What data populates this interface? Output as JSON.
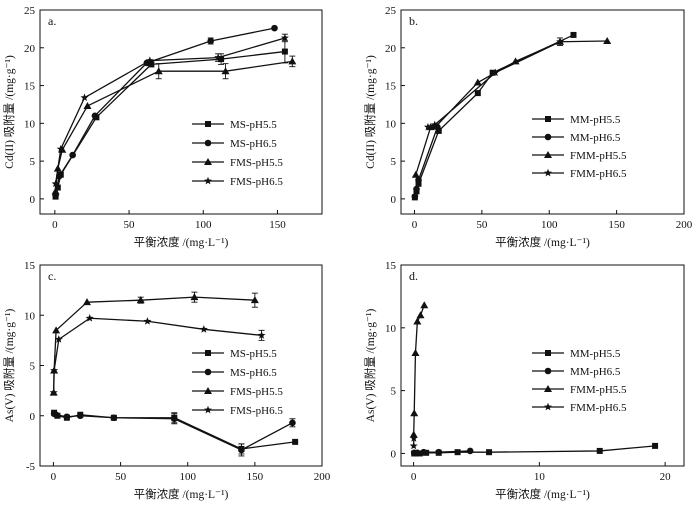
{
  "chart_data": [
    {
      "id": "a",
      "type": "line",
      "panel_label": "a.",
      "xlabel": "平衡浓度 /(mg·L⁻¹)",
      "ylabel": "Cd(II) 吸附量 /(mg·g⁻¹)",
      "xlim": [
        -10,
        180
      ],
      "ylim": [
        -2,
        25
      ],
      "xticks": [
        0,
        50,
        100,
        150
      ],
      "yticks": [
        0,
        5,
        10,
        15,
        20,
        25
      ],
      "legend_position": "bottom-right",
      "series": [
        {
          "name": "MS-pH5.5",
          "marker": "square",
          "x": [
            0.5,
            2,
            4,
            28,
            65,
            112,
            155
          ],
          "y": [
            0.3,
            1.5,
            3.2,
            10.8,
            17.8,
            18.5,
            19.5
          ],
          "err": [
            0,
            0,
            0,
            0,
            0.3,
            0.7,
            1.5
          ]
        },
        {
          "name": "MS-pH6.5",
          "marker": "circle",
          "x": [
            0.5,
            3,
            12,
            27,
            62,
            105,
            148
          ],
          "y": [
            0.5,
            3.0,
            5.8,
            11.0,
            18.0,
            20.9,
            22.6
          ],
          "err": [
            0,
            0,
            0,
            0,
            0,
            0.4,
            0
          ]
        },
        {
          "name": "FMS-pH5.5",
          "marker": "triangle",
          "x": [
            0.5,
            2,
            5,
            22,
            70,
            115,
            160
          ],
          "y": [
            1.0,
            4.0,
            6.5,
            12.3,
            16.9,
            16.9,
            18.2
          ],
          "err": [
            0,
            0,
            0,
            0,
            1.0,
            1.0,
            0.7
          ]
        },
        {
          "name": "FMS-pH6.5",
          "marker": "star",
          "x": [
            0.5,
            4,
            20,
            64,
            110,
            155
          ],
          "y": [
            2.0,
            6.6,
            13.4,
            18.3,
            18.7,
            21.3
          ],
          "err": [
            0,
            0,
            0,
            0,
            0.5,
            0.5
          ]
        }
      ]
    },
    {
      "id": "b",
      "type": "line",
      "panel_label": "b.",
      "xlabel": "平衡浓度 /(mg·L⁻¹)",
      "ylabel": "Cd(II) 吸附量 /(mg·g⁻¹)",
      "xlim": [
        -10,
        200
      ],
      "ylim": [
        -2,
        25
      ],
      "xticks": [
        0,
        50,
        100,
        150,
        200
      ],
      "yticks": [
        0,
        5,
        10,
        15,
        20,
        25
      ],
      "legend_position": "bottom-right",
      "series": [
        {
          "name": "MM-pH5.5",
          "marker": "square",
          "x": [
            0.3,
            1.5,
            3,
            18,
            47,
            58,
            118
          ],
          "y": [
            0.2,
            1.0,
            2.0,
            9.0,
            14.0,
            16.7,
            21.7
          ],
          "err": [
            0,
            0,
            0,
            0,
            0,
            0,
            0
          ]
        },
        {
          "name": "MM-pH6.5",
          "marker": "circle",
          "x": [
            0.3,
            1.5,
            3,
            17
          ],
          "y": [
            0.3,
            1.3,
            2.5,
            9.5
          ],
          "err": [
            0,
            0,
            0,
            0
          ]
        },
        {
          "name": "FMM-pH5.5",
          "marker": "triangle",
          "x": [
            1,
            12,
            16,
            47,
            75,
            108,
            143
          ],
          "y": [
            3.2,
            9.5,
            9.6,
            15.4,
            18.2,
            20.8,
            20.9
          ],
          "err": [
            0,
            0,
            0,
            0,
            0,
            0.5,
            0
          ]
        },
        {
          "name": "FMM-pH6.5",
          "marker": "star",
          "x": [
            10,
            15,
            60,
            108
          ],
          "y": [
            9.5,
            9.8,
            16.7,
            20.8
          ],
          "err": [
            0,
            0,
            0,
            0
          ]
        }
      ]
    },
    {
      "id": "c",
      "type": "line",
      "panel_label": "c.",
      "xlabel": "平衡浓度 /(mg·L⁻¹)",
      "ylabel": "As(V) 吸附量 /(mg·g⁻¹)",
      "xlim": [
        -10,
        200
      ],
      "ylim": [
        -5,
        15
      ],
      "xticks": [
        0,
        50,
        100,
        150,
        200
      ],
      "yticks": [
        -5,
        0,
        5,
        10,
        15
      ],
      "legend_position": "bottom-right",
      "series": [
        {
          "name": "MS-pH5.5",
          "marker": "square",
          "x": [
            0.5,
            3,
            10,
            20,
            45,
            90,
            140,
            180
          ],
          "y": [
            0.3,
            0.0,
            -0.2,
            0.1,
            -0.2,
            -0.2,
            -3.3,
            -2.6
          ],
          "err": [
            0,
            0,
            0,
            0,
            0,
            0.5,
            0.5,
            0
          ]
        },
        {
          "name": "MS-pH6.5",
          "marker": "circle",
          "x": [
            0.5,
            2,
            10,
            20,
            45,
            90,
            140,
            178
          ],
          "y": [
            0.2,
            0.1,
            -0.1,
            0.0,
            -0.2,
            -0.3,
            -3.4,
            -0.7
          ],
          "err": [
            0,
            0,
            0,
            0,
            0,
            0.5,
            0.6,
            0.4
          ]
        },
        {
          "name": "FMS-pH5.5",
          "marker": "triangle",
          "x": [
            0.2,
            0.5,
            2,
            25,
            65,
            105,
            150
          ],
          "y": [
            2.3,
            4.5,
            8.5,
            11.3,
            11.5,
            11.8,
            11.5
          ],
          "err": [
            0,
            0,
            0,
            0,
            0.3,
            0.5,
            0.7
          ]
        },
        {
          "name": "FMS-pH6.5",
          "marker": "star",
          "x": [
            0.2,
            0.5,
            4,
            27,
            70,
            112,
            155
          ],
          "y": [
            2.3,
            4.5,
            7.6,
            9.7,
            9.4,
            8.6,
            8.0
          ],
          "err": [
            0,
            0,
            0,
            0,
            0,
            0,
            0.5
          ]
        }
      ]
    },
    {
      "id": "d",
      "type": "line",
      "panel_label": "d.",
      "xlabel": "平衡浓度 /(mg·L⁻¹)",
      "ylabel": "As(V) 吸附量 /(mg·g⁻¹)",
      "xlim": [
        -1,
        21.5
      ],
      "ylim": [
        -1,
        15
      ],
      "xticks": [
        0,
        10,
        20
      ],
      "yticks": [
        0,
        5,
        10,
        15
      ],
      "legend_position": "center-right",
      "series": [
        {
          "name": "MM-pH5.5",
          "marker": "square",
          "x": [
            0.05,
            0.2,
            0.5,
            1.0,
            2.0,
            3.5,
            6.0,
            14.8,
            19.2
          ],
          "y": [
            0.0,
            0.0,
            0.0,
            0.05,
            0.05,
            0.1,
            0.1,
            0.2,
            0.6
          ],
          "err": [
            0,
            0,
            0,
            0,
            0,
            0,
            0,
            0,
            0
          ]
        },
        {
          "name": "MM-pH6.5",
          "marker": "circle",
          "x": [
            0.05,
            0.3,
            0.8,
            2.0,
            4.5
          ],
          "y": [
            0.05,
            0.05,
            0.1,
            0.1,
            0.2
          ],
          "err": [
            0,
            0,
            0,
            0,
            0
          ]
        },
        {
          "name": "FMM-pH5.5",
          "marker": "triangle",
          "x": [
            0.01,
            0.05,
            0.15,
            0.3,
            0.55,
            0.85
          ],
          "y": [
            1.5,
            3.2,
            8.0,
            10.5,
            11.0,
            11.8
          ],
          "err": [
            0,
            0,
            0,
            0,
            0,
            0
          ]
        },
        {
          "name": "FMM-pH6.5",
          "marker": "star",
          "x": [
            0.01,
            0.02
          ],
          "y": [
            0.6,
            1.2
          ],
          "err": [
            0,
            0
          ]
        }
      ]
    }
  ]
}
